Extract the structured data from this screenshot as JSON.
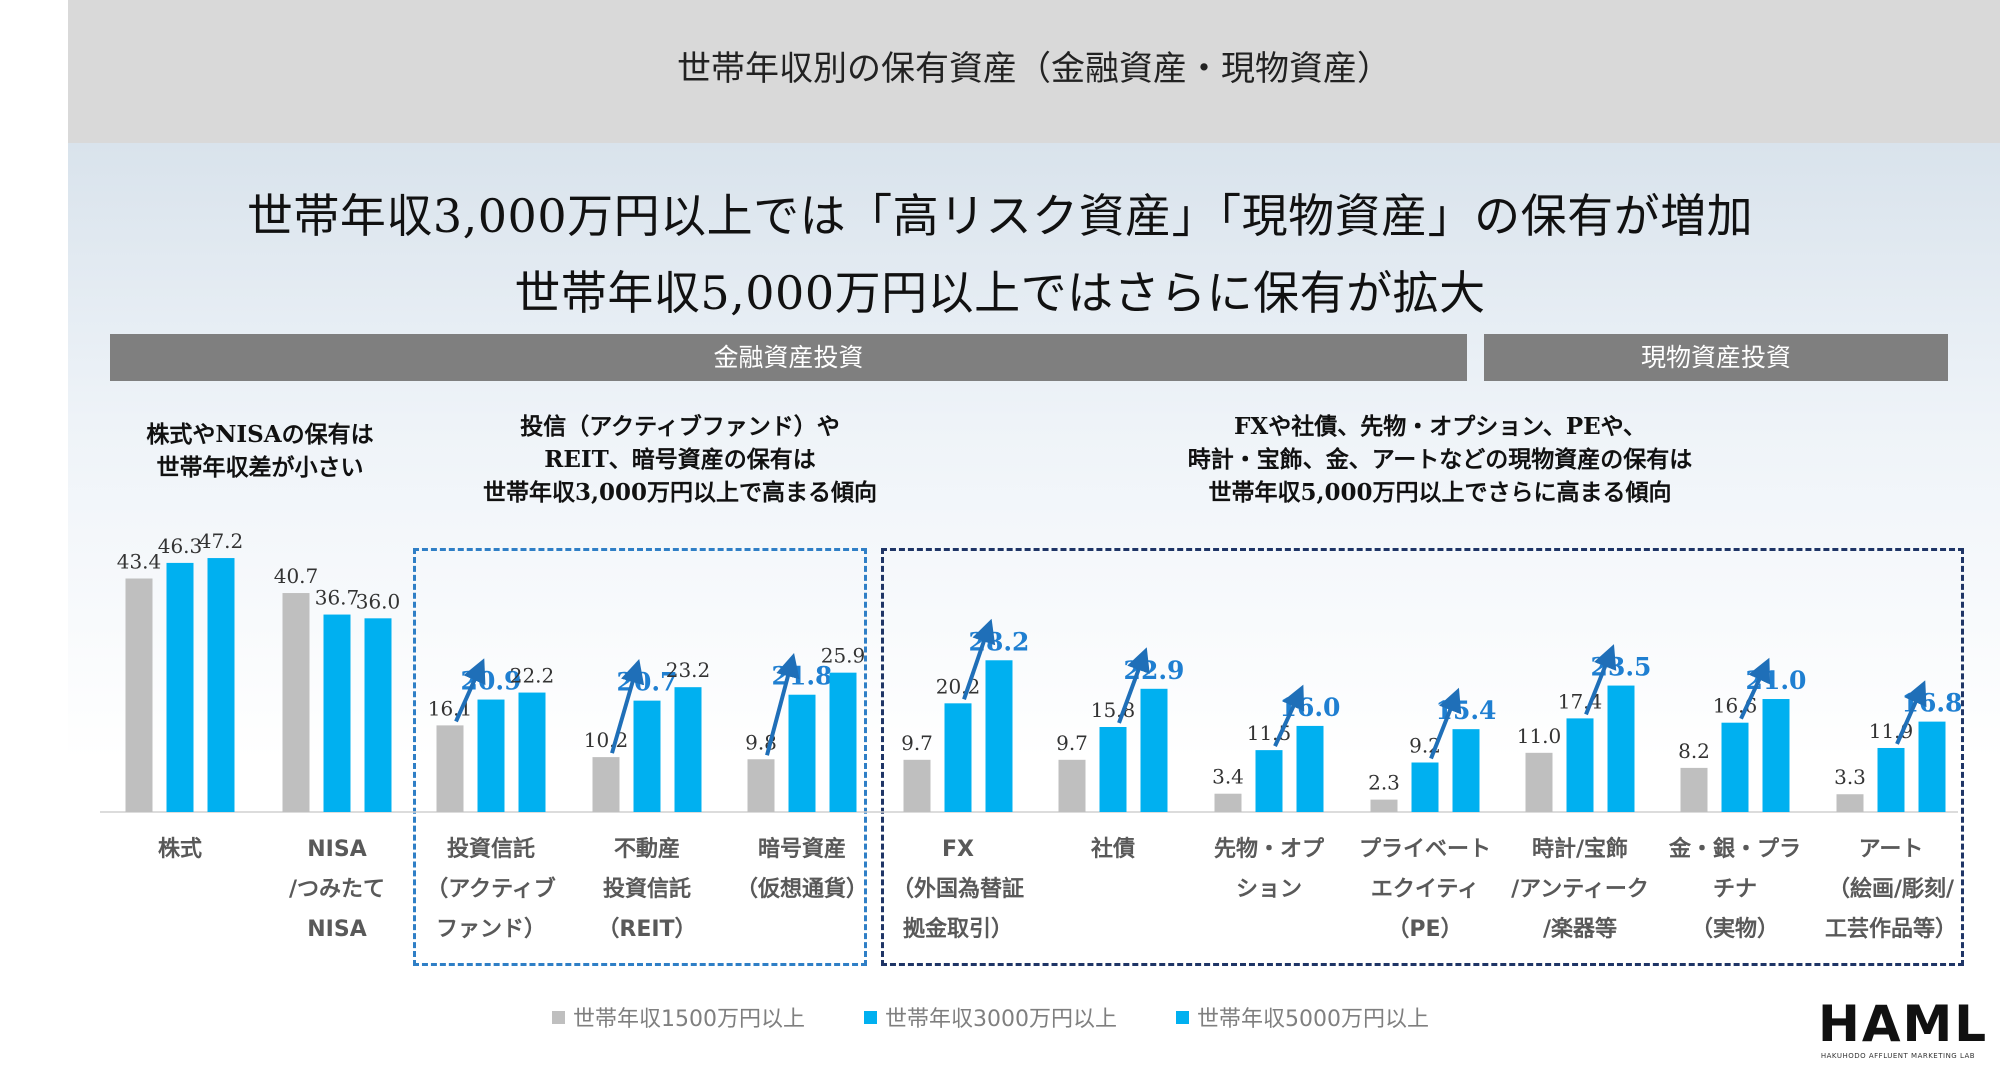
{
  "slide_title": "世帯年収別の保有資産（金融資産・現物資産）",
  "headline_1": "世帯年収3,000万円以上では「高リスク資産」「現物資産」の保有が増加",
  "headline_2": "世帯年収5,000万円以上ではさらに保有が拡大",
  "sections": {
    "financial": "金融資産投資",
    "physical": "現物資産投資"
  },
  "notes": {
    "left": [
      "株式やNISAの保有は",
      "世帯年収差が小さい"
    ],
    "middle": [
      "投信（アクティブファンド）や",
      "REIT、暗号資産の保有は",
      "世帯年収3,000万円以上で高まる傾向"
    ],
    "right": [
      "FXや社債、先物・オプション、PEや、",
      "時計・宝飾、金、アートなどの現物資産の保有は",
      "世帯年収5,000万円以上でさらに高まる傾向"
    ]
  },
  "colors": {
    "series_1500": "#bfbfbf",
    "series_3000": "#00b0f0",
    "series_5000": "#00b0f0",
    "highlight_label": "#1f7fd1",
    "arrow": "#1f6fb8",
    "box_mid": "#2f7fc6",
    "box_right": "#1f3566"
  },
  "chart_data": {
    "type": "bar",
    "title": "",
    "xlabel": "",
    "ylabel": "",
    "ylim": [
      0,
      50
    ],
    "categories": [
      [
        "株式"
      ],
      [
        "NISA",
        "/つみたて",
        "NISA"
      ],
      [
        "投資信託",
        "（アクティブ",
        "ファンド）"
      ],
      [
        "不動産",
        "投資信託",
        "（REIT）"
      ],
      [
        "暗号資産",
        "（仮想通貨）"
      ],
      [
        "FX",
        "（外国為替証",
        "拠金取引）"
      ],
      [
        "社債"
      ],
      [
        "先物・オプ",
        "ション"
      ],
      [
        "プライベート",
        "エクイティ",
        "（PE）"
      ],
      [
        "時計/宝飾",
        "/アンティーク",
        "/楽器等"
      ],
      [
        "金・銀・プラ",
        "チナ",
        "（実物）"
      ],
      [
        "アート",
        "（絵画/彫刻/",
        "工芸作品等）"
      ]
    ],
    "series": [
      {
        "name": "世帯年収1500万円以上",
        "values": [
          43.4,
          40.7,
          16.1,
          10.2,
          9.8,
          9.7,
          9.7,
          3.4,
          2.3,
          11.0,
          8.2,
          3.3
        ]
      },
      {
        "name": "世帯年収3000万円以上",
        "values": [
          46.3,
          36.7,
          20.9,
          20.7,
          21.8,
          20.2,
          15.8,
          11.5,
          9.2,
          17.4,
          16.6,
          11.9
        ]
      },
      {
        "name": "世帯年収5000万円以上",
        "values": [
          47.2,
          36.0,
          22.2,
          23.2,
          25.9,
          28.2,
          22.9,
          16.0,
          15.4,
          23.5,
          21.0,
          16.8
        ]
      }
    ],
    "value_labels": [
      [
        "43.4",
        "40.7",
        "16.1",
        "10.2",
        "9.8",
        "9.7",
        "9.7",
        "3.4",
        "2.3",
        "11.0",
        "8.2",
        "3.3"
      ],
      [
        "46.3",
        "36.7",
        "20.9",
        "20.7",
        "21.8",
        "20.2",
        "15.8",
        "11.5",
        "9.2",
        "17.4",
        "16.6",
        "11.9"
      ],
      [
        "47.2",
        "36.0",
        "22.2",
        "23.2",
        "25.9",
        "28.2",
        "22.9",
        "16.0",
        "15.4",
        "23.5",
        "21.0",
        "16.8"
      ]
    ],
    "highlighted_series_by_category": [
      null,
      null,
      1,
      1,
      1,
      2,
      2,
      2,
      2,
      2,
      2,
      2
    ],
    "grid": false,
    "legend_position": "bottom"
  },
  "legend": [
    {
      "label": "世帯年収1500万円以上",
      "color": "#bfbfbf"
    },
    {
      "label": "世帯年収3000万円以上",
      "color": "#00b0f0"
    },
    {
      "label": "世帯年収5000万円以上",
      "color": "#00b0f0"
    }
  ],
  "logo": {
    "text": "HAML",
    "subtext": "HAKUHODO AFFLUENT MARKETING LAB"
  }
}
